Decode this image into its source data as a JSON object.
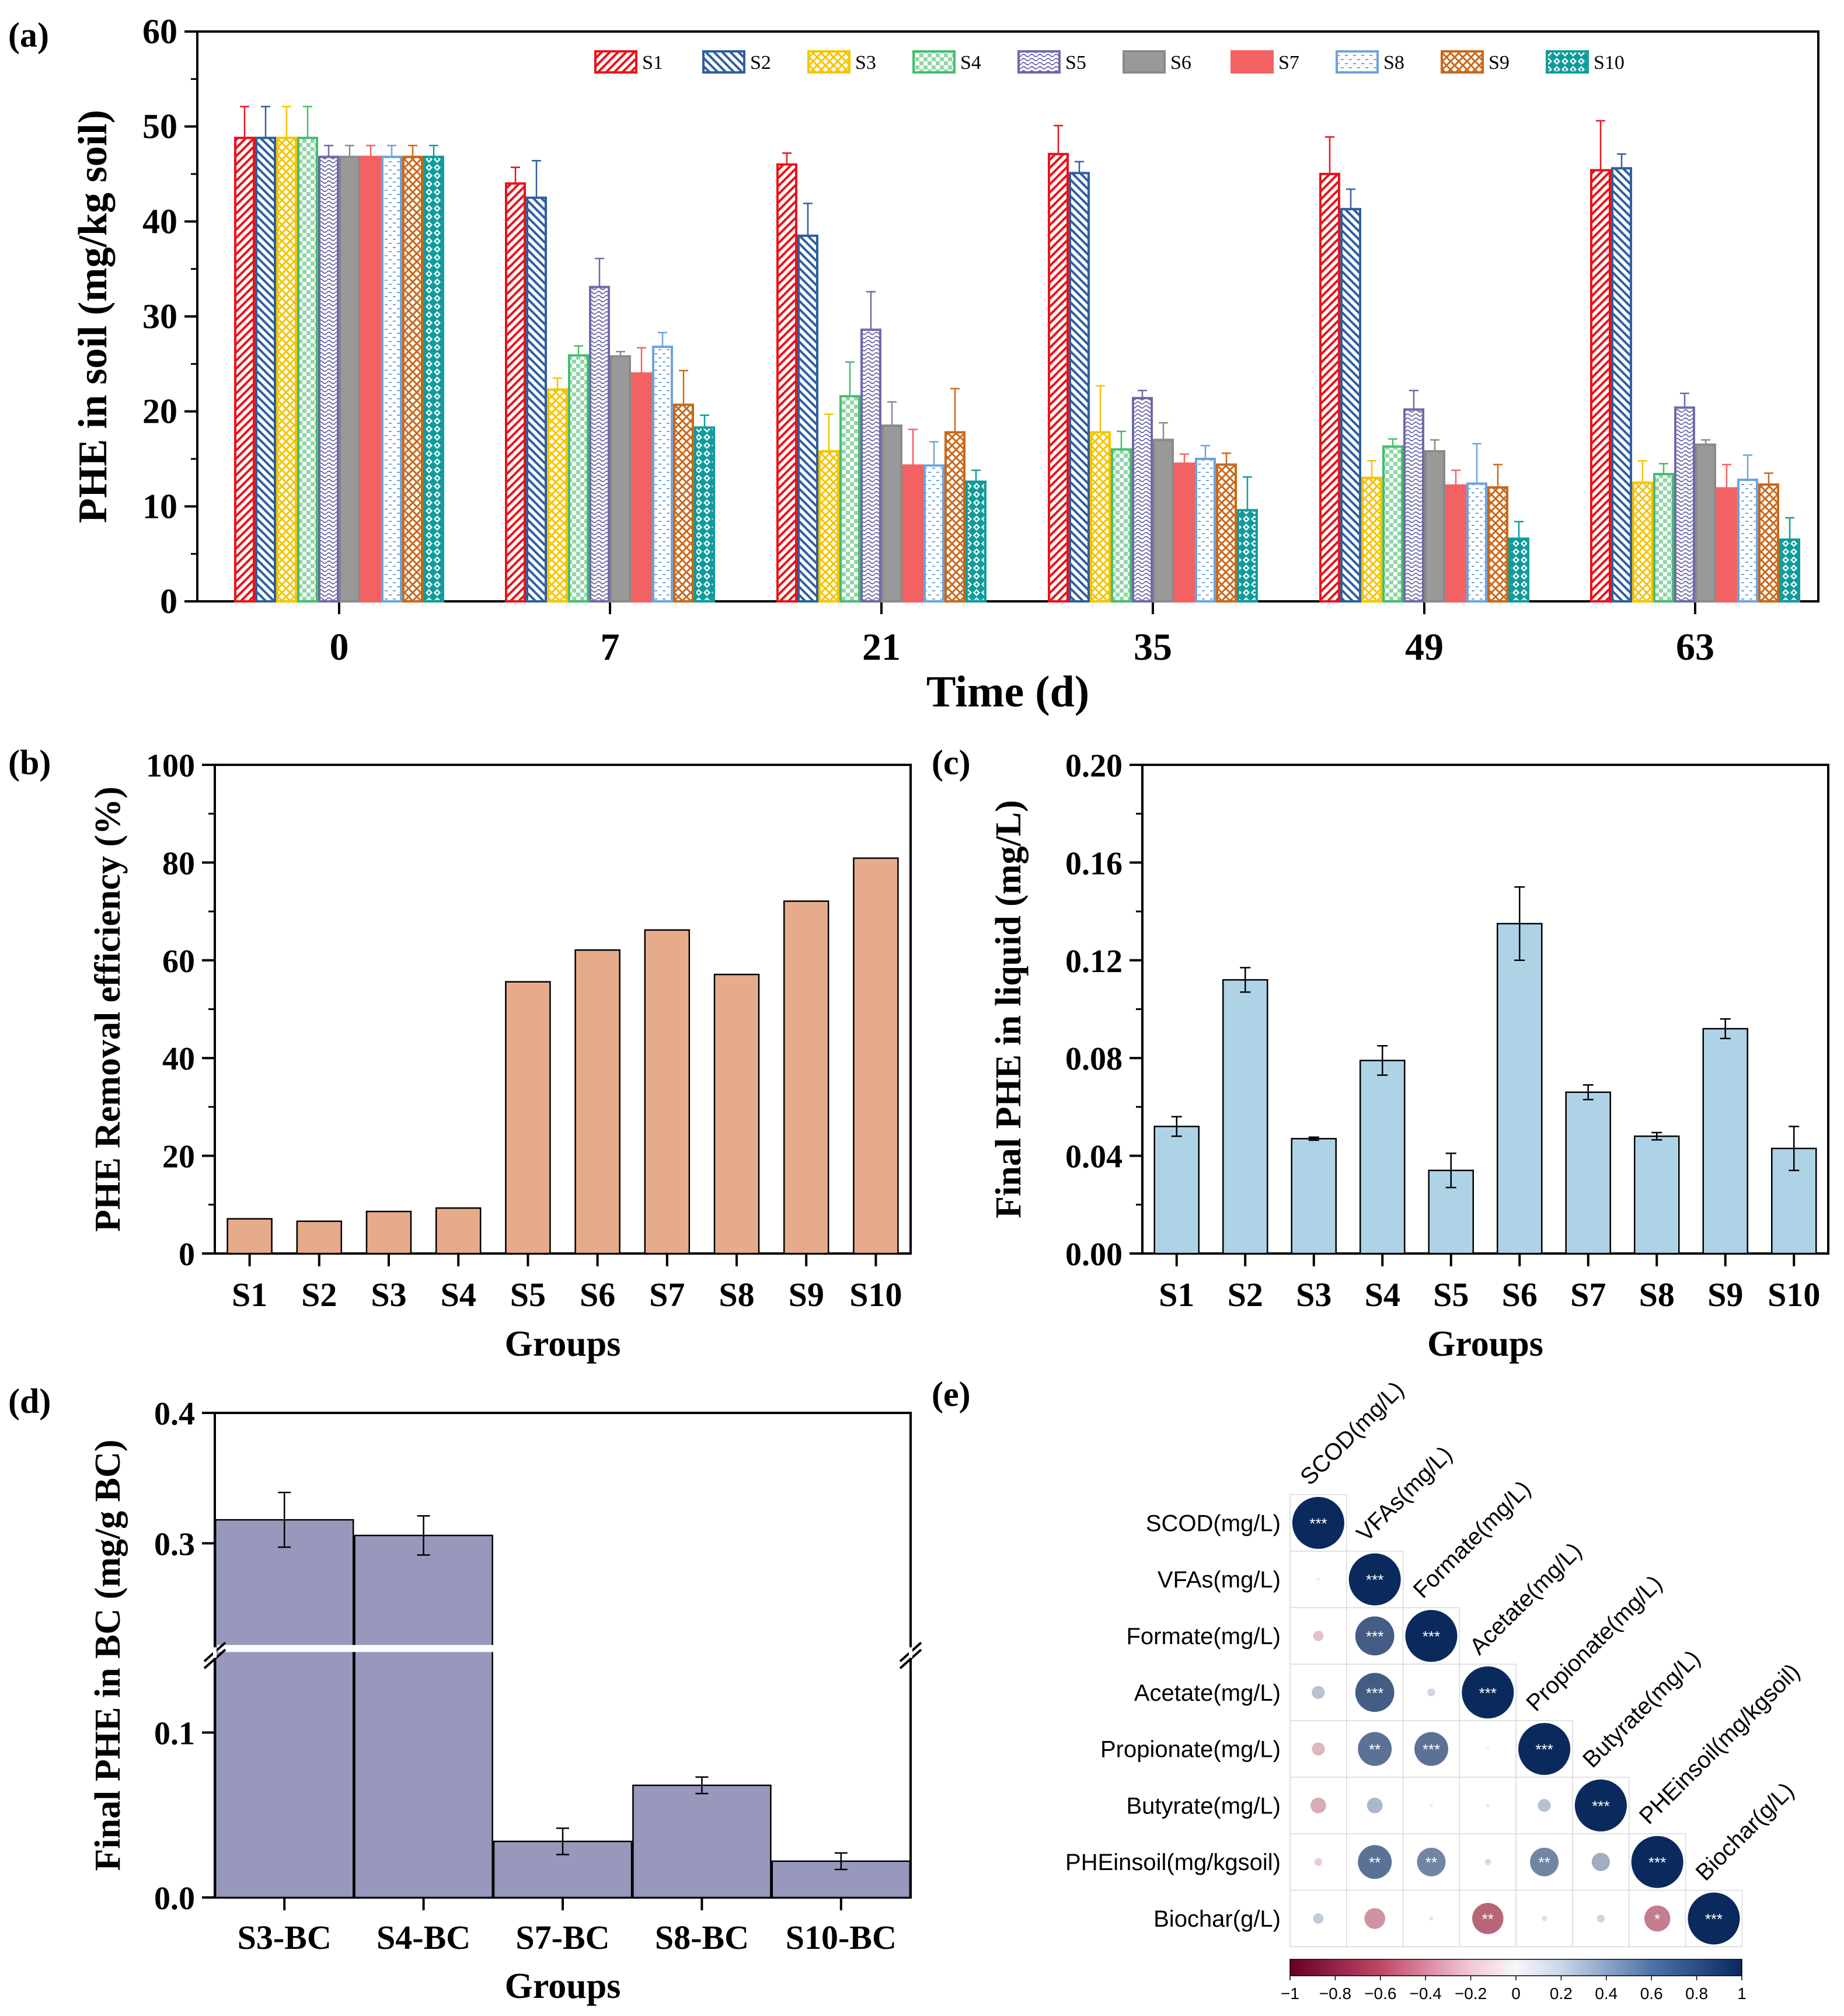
{
  "figure": {
    "panel_labels": [
      "(a)",
      "(b)",
      "(c)",
      "(d)",
      "(e)"
    ]
  },
  "colors": {
    "S1": "#e8141a",
    "S2": "#2f5f9e",
    "S3": "#f5c400",
    "S4": "#46bd6f",
    "S5": "#6e6aa8",
    "S6": "#999999",
    "S7": "#f26263",
    "S8": "#6fa3dc",
    "S9": "#c8691c",
    "S10": "#119c9b",
    "removal_bar": "#e6ab8a",
    "liquid_bar": "#aed3e6",
    "bc_bar": "#9898bd",
    "corr_pos": "#0a2a5e",
    "corr_neg": "#8b0a26"
  },
  "chart_data": [
    {
      "panel": "(a)",
      "type": "bar",
      "xlabel": "Time (d)",
      "ylabel": "PHE in soil (mg/kg soil)",
      "ylim": [
        0,
        60
      ],
      "yticks": [
        0,
        10,
        20,
        30,
        40,
        50,
        60
      ],
      "categories": [
        "0",
        "7",
        "21",
        "35",
        "49",
        "63"
      ],
      "legend_position": "top-right",
      "series": [
        {
          "name": "S1",
          "values": [
            48.8,
            44.0,
            46.0,
            47.1,
            45.0,
            45.4
          ],
          "errors": [
            3.3,
            1.7,
            1.2,
            3.0,
            3.9,
            5.2
          ]
        },
        {
          "name": "S2",
          "values": [
            48.8,
            42.5,
            38.5,
            45.1,
            41.3,
            45.6
          ],
          "errors": [
            3.3,
            3.9,
            3.4,
            1.2,
            2.1,
            1.5
          ]
        },
        {
          "name": "S3",
          "values": [
            48.8,
            22.3,
            15.8,
            17.8,
            13.0,
            12.5
          ],
          "errors": [
            3.3,
            1.2,
            3.9,
            4.9,
            1.8,
            2.3
          ]
        },
        {
          "name": "S4",
          "values": [
            48.8,
            25.9,
            21.6,
            16.0,
            16.3,
            13.4
          ],
          "errors": [
            3.3,
            1.0,
            3.6,
            1.9,
            0.8,
            1.1
          ]
        },
        {
          "name": "S5",
          "values": [
            46.8,
            33.1,
            28.6,
            21.4,
            20.2,
            20.4
          ],
          "errors": [
            1.2,
            3.0,
            4.0,
            0.8,
            2.0,
            1.5
          ]
        },
        {
          "name": "S6",
          "values": [
            46.8,
            25.8,
            18.5,
            17.0,
            15.8,
            16.5
          ],
          "errors": [
            1.2,
            0.5,
            2.5,
            1.8,
            1.2,
            0.5
          ]
        },
        {
          "name": "S7",
          "values": [
            46.8,
            24.0,
            14.3,
            14.5,
            12.2,
            11.9
          ],
          "errors": [
            1.2,
            2.7,
            3.8,
            1.0,
            1.6,
            2.5
          ]
        },
        {
          "name": "S8",
          "values": [
            46.8,
            26.8,
            14.3,
            15.0,
            12.4,
            12.8
          ],
          "errors": [
            1.2,
            1.5,
            2.5,
            1.4,
            4.2,
            2.6
          ]
        },
        {
          "name": "S9",
          "values": [
            46.8,
            20.7,
            17.8,
            14.4,
            12.0,
            12.3
          ],
          "errors": [
            1.2,
            3.6,
            4.6,
            1.2,
            2.4,
            1.2
          ]
        },
        {
          "name": "S10",
          "values": [
            46.8,
            18.3,
            12.6,
            9.6,
            6.6,
            6.5
          ],
          "errors": [
            1.2,
            1.3,
            1.2,
            3.5,
            1.8,
            2.3
          ]
        }
      ]
    },
    {
      "panel": "(b)",
      "type": "bar",
      "xlabel": "Groups",
      "ylabel": "PHE Removal efficiency (%)",
      "ylim": [
        0,
        100
      ],
      "yticks": [
        0,
        20,
        40,
        60,
        80,
        100
      ],
      "categories": [
        "S1",
        "S2",
        "S3",
        "S4",
        "S5",
        "S6",
        "S7",
        "S8",
        "S9",
        "S10"
      ],
      "values": [
        7.1,
        6.6,
        8.6,
        9.3,
        55.6,
        62.1,
        66.2,
        57.1,
        72.1,
        80.9
      ]
    },
    {
      "panel": "(c)",
      "type": "bar",
      "xlabel": "Groups",
      "ylabel": "Final PHE in liquid (mg/L)",
      "ylim": [
        0,
        0.2
      ],
      "yticks": [
        "0.00",
        "0.04",
        "0.08",
        "0.12",
        "0.16",
        "0.20"
      ],
      "categories": [
        "S1",
        "S2",
        "S3",
        "S4",
        "S5",
        "S6",
        "S7",
        "S8",
        "S9",
        "S10"
      ],
      "values": [
        0.052,
        0.112,
        0.047,
        0.079,
        0.034,
        0.135,
        0.066,
        0.048,
        0.092,
        0.043
      ],
      "errors": [
        0.004,
        0.005,
        0.0006,
        0.006,
        0.007,
        0.015,
        0.003,
        0.0015,
        0.004,
        0.009
      ]
    },
    {
      "panel": "(d)",
      "type": "bar",
      "xlabel": "Groups",
      "ylabel": "Final PHE in BC (mg/g BC)",
      "axis_break": [
        0.12,
        0.28
      ],
      "yticks": [
        "0.0",
        "0.1",
        "0.3",
        "0.4"
      ],
      "categories": [
        "S3-BC",
        "S4-BC",
        "S7-BC",
        "S8-BC",
        "S10-BC"
      ],
      "values": [
        0.318,
        0.306,
        0.034,
        0.068,
        0.022
      ],
      "errors": [
        0.021,
        0.015,
        0.008,
        0.005,
        0.005
      ]
    },
    {
      "panel": "(e)",
      "type": "heatmap",
      "variables": [
        "SCOD(mg/L)",
        "VFAs(mg/L)",
        "Formate(mg/L)",
        "Acetate(mg/L)",
        "Propionate(mg/L)",
        "Butyrate(mg/L)",
        "PHEinsoil(mg/kgsoil)",
        "Biochar(g/L)"
      ],
      "colorbar_ticks": [
        "−1",
        "−0.8",
        "−0.6",
        "−0.4",
        "−0.2",
        "0",
        "0.2",
        "0.4",
        "0.6",
        "0.8",
        "1"
      ],
      "cells": [
        {
          "r": 0,
          "c": 0,
          "v": 1.0,
          "sig": "***"
        },
        {
          "r": 1,
          "c": 0,
          "v": 0.03,
          "sig": ""
        },
        {
          "r": 1,
          "c": 1,
          "v": 1.0,
          "sig": "***"
        },
        {
          "r": 2,
          "c": 0,
          "v": -0.2,
          "sig": ""
        },
        {
          "r": 2,
          "c": 1,
          "v": 0.75,
          "sig": "***"
        },
        {
          "r": 2,
          "c": 2,
          "v": 1.0,
          "sig": "***"
        },
        {
          "r": 3,
          "c": 0,
          "v": 0.25,
          "sig": ""
        },
        {
          "r": 3,
          "c": 1,
          "v": 0.75,
          "sig": "***"
        },
        {
          "r": 3,
          "c": 2,
          "v": 0.15,
          "sig": ""
        },
        {
          "r": 3,
          "c": 3,
          "v": 1.0,
          "sig": "***"
        },
        {
          "r": 4,
          "c": 0,
          "v": -0.25,
          "sig": ""
        },
        {
          "r": 4,
          "c": 1,
          "v": 0.65,
          "sig": "**"
        },
        {
          "r": 4,
          "c": 2,
          "v": 0.65,
          "sig": "***"
        },
        {
          "r": 4,
          "c": 3,
          "v": 0.02,
          "sig": ""
        },
        {
          "r": 4,
          "c": 4,
          "v": 1.0,
          "sig": "***"
        },
        {
          "r": 5,
          "c": 0,
          "v": -0.3,
          "sig": ""
        },
        {
          "r": 5,
          "c": 1,
          "v": 0.3,
          "sig": ""
        },
        {
          "r": 5,
          "c": 2,
          "v": 0.04,
          "sig": ""
        },
        {
          "r": 5,
          "c": 3,
          "v": 0.05,
          "sig": ""
        },
        {
          "r": 5,
          "c": 4,
          "v": 0.25,
          "sig": ""
        },
        {
          "r": 5,
          "c": 5,
          "v": 1.0,
          "sig": "***"
        },
        {
          "r": 6,
          "c": 0,
          "v": -0.15,
          "sig": ""
        },
        {
          "r": 6,
          "c": 1,
          "v": 0.65,
          "sig": "**"
        },
        {
          "r": 6,
          "c": 2,
          "v": 0.55,
          "sig": "**"
        },
        {
          "r": 6,
          "c": 3,
          "v": 0.12,
          "sig": ""
        },
        {
          "r": 6,
          "c": 4,
          "v": 0.55,
          "sig": "**"
        },
        {
          "r": 6,
          "c": 5,
          "v": 0.35,
          "sig": ""
        },
        {
          "r": 6,
          "c": 6,
          "v": 1.0,
          "sig": "***"
        },
        {
          "r": 7,
          "c": 0,
          "v": 0.2,
          "sig": ""
        },
        {
          "r": 7,
          "c": 1,
          "v": -0.4,
          "sig": ""
        },
        {
          "r": 7,
          "c": 2,
          "v": -0.08,
          "sig": ""
        },
        {
          "r": 7,
          "c": 3,
          "v": -0.6,
          "sig": "**"
        },
        {
          "r": 7,
          "c": 4,
          "v": 0.1,
          "sig": ""
        },
        {
          "r": 7,
          "c": 5,
          "v": 0.15,
          "sig": ""
        },
        {
          "r": 7,
          "c": 6,
          "v": -0.5,
          "sig": "*"
        },
        {
          "r": 7,
          "c": 7,
          "v": 1.0,
          "sig": "***"
        }
      ]
    }
  ]
}
